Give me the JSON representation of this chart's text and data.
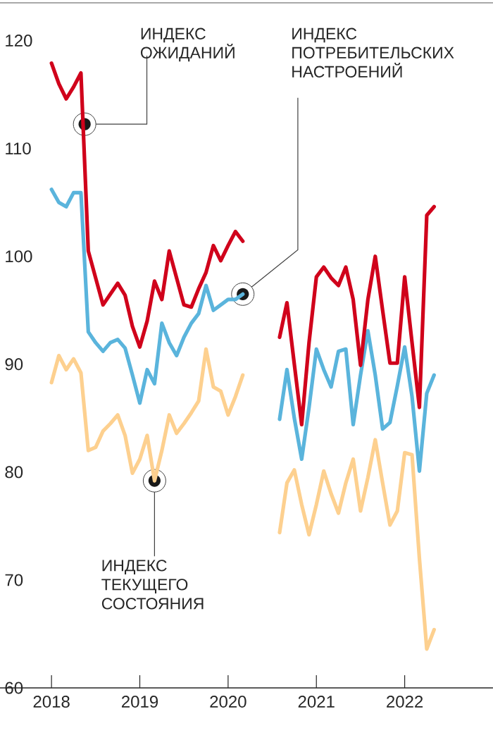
{
  "chart_data": {
    "type": "line",
    "x": [
      "2018-01",
      "2018-02",
      "2018-03",
      "2018-04",
      "2018-05",
      "2018-06",
      "2018-07",
      "2018-08",
      "2018-09",
      "2018-10",
      "2018-11",
      "2018-12",
      "2019-01",
      "2019-02",
      "2019-03",
      "2019-04",
      "2019-05",
      "2019-06",
      "2019-07",
      "2019-08",
      "2019-09",
      "2019-10",
      "2019-11",
      "2019-12",
      "2020-01",
      "2020-02",
      "2020-03",
      "2020-04",
      "2020-05",
      "2020-06",
      "2020-07",
      "2020-08",
      "2020-09",
      "2020-10",
      "2020-11",
      "2020-12",
      "2021-01",
      "2021-02",
      "2021-03",
      "2021-04",
      "2021-05",
      "2021-06",
      "2021-07",
      "2021-08",
      "2021-09",
      "2021-10",
      "2021-11",
      "2021-12",
      "2022-01",
      "2022-02",
      "2022-03",
      "2022-04",
      "2022-05"
    ],
    "series": [
      {
        "name": "ИНДЕКС ОЖИДАНИЙ",
        "color": "#d0021b",
        "values": [
          117.9,
          116,
          114.6,
          115.7,
          117,
          100.5,
          98,
          95.5,
          96.5,
          97.5,
          96.4,
          93.5,
          91.6,
          94,
          97.7,
          96,
          100.5,
          98,
          95.5,
          95.3,
          97,
          98.5,
          101,
          99.6,
          101,
          102.3,
          101.4,
          null,
          null,
          null,
          null,
          92.5,
          95.7,
          90,
          84.4,
          92,
          98.1,
          99,
          98,
          97.3,
          99,
          96,
          89.9,
          96,
          100,
          95,
          90.1,
          90.1,
          98.1,
          92,
          86,
          103.8,
          104.6
        ]
      },
      {
        "name": "ИНДЕКС ПОТРЕБИТЕЛЬСКИХ НАСТРОЕНИЙ",
        "color": "#5ab4dc",
        "values": [
          106.2,
          105,
          104.6,
          105.9,
          105.9,
          93,
          92,
          91.2,
          92,
          92.3,
          91.5,
          89,
          86.4,
          89.5,
          88.2,
          93.8,
          92,
          90.8,
          92.5,
          93.8,
          94.7,
          97.3,
          95,
          95.5,
          96,
          96,
          96.5,
          null,
          null,
          null,
          null,
          84.9,
          89.5,
          85,
          81.2,
          86,
          91.4,
          89.5,
          87.9,
          91.2,
          91.4,
          84.4,
          89,
          93.1,
          89,
          84,
          84.6,
          88,
          91.6,
          87,
          80.1,
          87.3,
          89
        ]
      },
      {
        "name": "ИНДЕКС ТЕКУЩЕГО СОСТОЯНИЯ",
        "color": "#fdd08f",
        "values": [
          88.3,
          90.8,
          89.5,
          90.5,
          89.2,
          82,
          82.3,
          83.8,
          84.5,
          85.3,
          83.4,
          79.9,
          81.2,
          83.4,
          79.2,
          82,
          85.3,
          83.6,
          84.5,
          85.5,
          86.6,
          91.4,
          87.9,
          87.5,
          85.3,
          87,
          89,
          null,
          null,
          null,
          null,
          74.4,
          79,
          80.2,
          77,
          74.2,
          77,
          80.1,
          78,
          76.2,
          79,
          81.2,
          76.4,
          79.5,
          83,
          79,
          75.1,
          76.4,
          81.8,
          81.6,
          72,
          63.6,
          65.4
        ]
      }
    ],
    "xlim": [
      "2017-06",
      "2023-01"
    ],
    "xticks": [
      "2018",
      "2019",
      "2020",
      "2021",
      "2022"
    ],
    "ylim": [
      60,
      123.5
    ],
    "yticks": [
      60,
      70,
      80,
      90,
      100,
      110,
      120
    ]
  }
}
